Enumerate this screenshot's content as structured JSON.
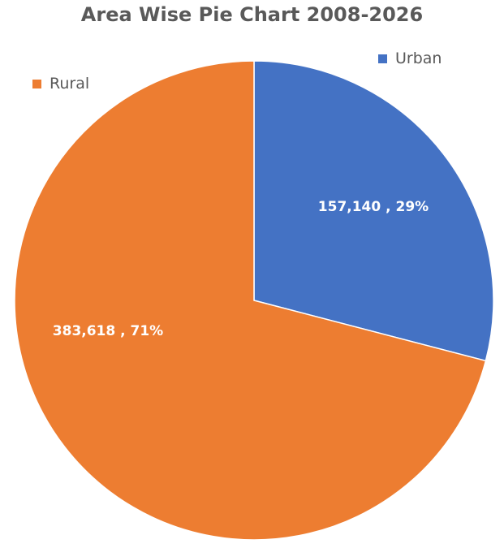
{
  "chart_data": {
    "type": "pie",
    "title": "Area Wise Pie Chart 2008-2026",
    "legend_placement": "scattered near slices (top)",
    "slices": [
      {
        "name": "Urban",
        "value": 157140,
        "percent": 29,
        "label": "157,140 , 29%",
        "color": "#4472C4"
      },
      {
        "name": "Rural",
        "value": 383618,
        "percent": 71,
        "label": "383,618 , 71%",
        "color": "#ED7D31"
      }
    ]
  }
}
